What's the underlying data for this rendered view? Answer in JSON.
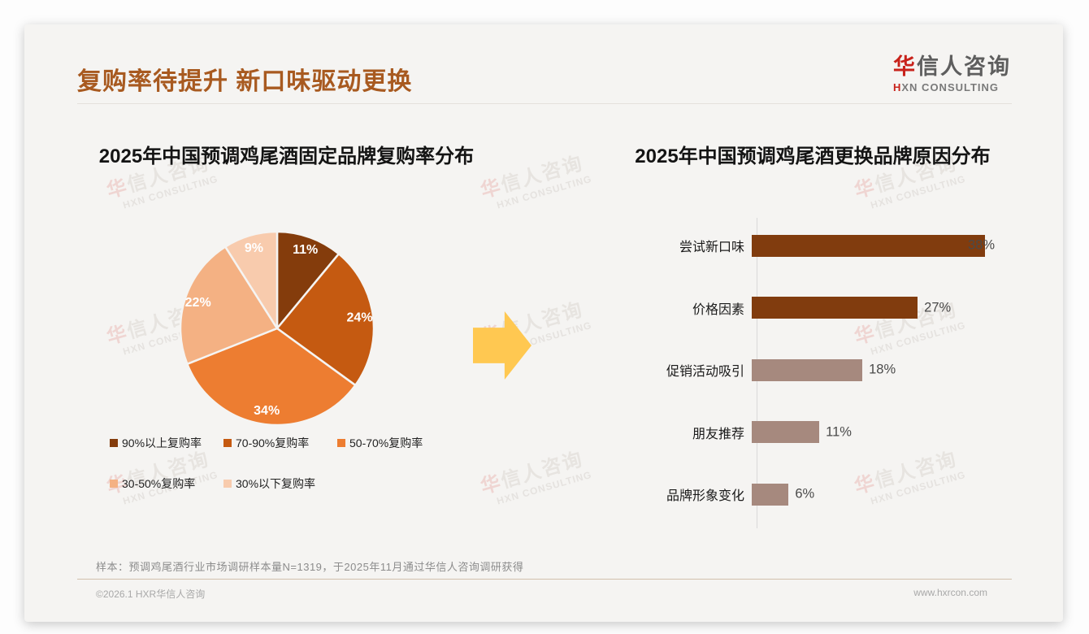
{
  "header": {
    "title": "复购率待提升 新口味驱动更换",
    "title_color": "#A85A20",
    "logo": {
      "zh_first": "华",
      "zh_rest": "信人咨询",
      "en_first": "H",
      "en_rest": "XN CONSULTING",
      "red": "#C8221B",
      "gray": "#5E5E5E"
    }
  },
  "watermark": {
    "zh_first": "华",
    "zh_rest": "信人咨询",
    "en": "HXN CONSULTING"
  },
  "arrow": {
    "name": "right-arrow",
    "color": "#FFC851"
  },
  "chart_data": [
    {
      "type": "pie",
      "title": "2025年中国预调鸡尾酒固定品牌复购率分布",
      "categories": [
        "90%以上复购率",
        "70-90%复购率",
        "50-70%复购率",
        "30-50%复购率",
        "30%以下复购率"
      ],
      "values": [
        11,
        24,
        34,
        22,
        9
      ],
      "value_labels": [
        "11%",
        "24%",
        "34%",
        "22%",
        "9%"
      ],
      "unit": "%",
      "colors": [
        "#843C0C",
        "#C55A11",
        "#ED7D31",
        "#F4B183",
        "#F8CBAD"
      ],
      "label_color": "#FFFFFF",
      "start_angle_deg": 0,
      "direction": "clockwise",
      "legend_position": "bottom",
      "slice_separator_color": "#F5F4F2"
    },
    {
      "type": "bar",
      "orientation": "horizontal",
      "title": "2025年中国预调鸡尾酒更换品牌原因分布",
      "categories": [
        "尝试新口味",
        "价格因素",
        "促销活动吸引",
        "朋友推荐",
        "品牌形象变化"
      ],
      "values": [
        38,
        27,
        18,
        11,
        6
      ],
      "value_labels": [
        "38%",
        "27%",
        "18%",
        "11%",
        "6%"
      ],
      "unit": "%",
      "colors": [
        "#813C0E",
        "#813C0E",
        "#A6897E",
        "#A6897E",
        "#A6897E"
      ],
      "xlim": [
        0,
        41
      ],
      "grid": false,
      "axis_color": "#D9D9D9",
      "value_label_color": "#4A4A4A"
    }
  ],
  "footnote": "样本：预调鸡尾酒行业市场调研样本量N=1319，于2025年11月通过华信人咨询调研获得",
  "footer": {
    "left": "©2026.1 HXR华信人咨询",
    "right": "www.hxrcon.com"
  }
}
